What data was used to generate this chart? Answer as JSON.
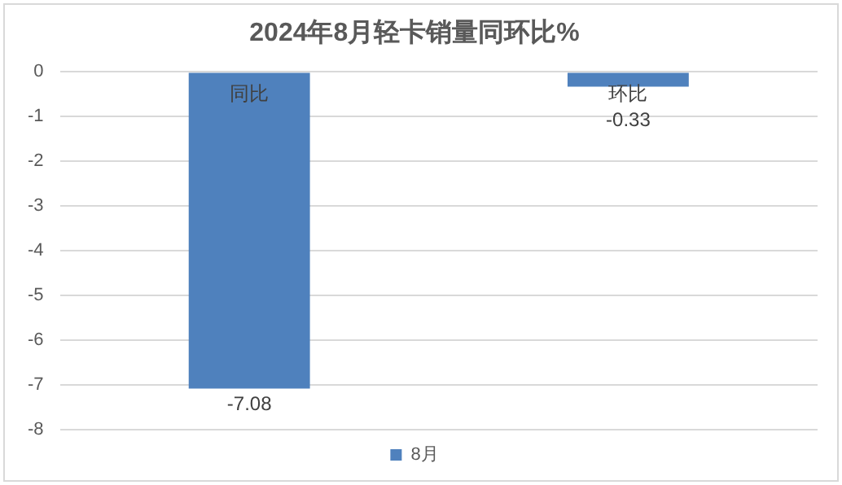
{
  "chart_data": {
    "type": "bar",
    "title": "2024年8月轻卡销量同环比%",
    "categories": [
      "同比",
      "环比"
    ],
    "series": [
      {
        "name": "8月",
        "color": "#4f81bd",
        "values": [
          -7.08,
          -0.33
        ]
      }
    ],
    "ylim": [
      -8,
      0
    ],
    "yticks": [
      0,
      -1,
      -2,
      -3,
      -4,
      -5,
      -6,
      -7,
      -8
    ],
    "grid": "y",
    "legend": "bottom",
    "data_labels": true
  }
}
